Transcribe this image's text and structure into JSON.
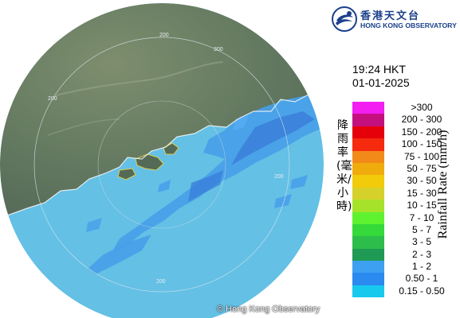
{
  "map": {
    "copyright": "© Hong Kong Observatory",
    "range_ring_labels": [
      "200",
      "300",
      "200",
      "200",
      "200"
    ],
    "colors": {
      "land": "#4f6a4f",
      "sea_outside": "#ffffff",
      "radar_disc_tint": "#9fd8ee"
    }
  },
  "logo": {
    "chinese_name": "香港天文台",
    "english_name": "HONG KONG OBSERVATORY",
    "mark_icon": "hko-logo-icon",
    "color": "#1a3f8c"
  },
  "timestamp": {
    "time": "19:24 HKT",
    "date": "01-01-2025"
  },
  "legend": {
    "title_en": "Rainfall Rate (mm/h)",
    "title_zh": "降雨率(毫米/小時)",
    "items": [
      {
        "label": ">300",
        "color": "#f21ef2"
      },
      {
        "label": "200 - 300",
        "color": "#c4107f"
      },
      {
        "label": "150 - 200",
        "color": "#e6000a"
      },
      {
        "label": "100 - 150",
        "color": "#f52a0e"
      },
      {
        "label": "75 - 100",
        "color": "#f28a1a"
      },
      {
        "label": "50 - 75",
        "color": "#f0ab0c"
      },
      {
        "label": "30 - 50",
        "color": "#f2cb0b"
      },
      {
        "label": "15 - 30",
        "color": "#d6d12a"
      },
      {
        "label": "10 - 15",
        "color": "#a6e22a"
      },
      {
        "label": "7 - 10",
        "color": "#5ef230"
      },
      {
        "label": "5 - 7",
        "color": "#36d93a"
      },
      {
        "label": "3 - 5",
        "color": "#2cbd4a"
      },
      {
        "label": "2 - 3",
        "color": "#1f9a55"
      },
      {
        "label": "1 - 2",
        "color": "#3ea0f0"
      },
      {
        "label": "0.50 - 1",
        "color": "#2b8af0"
      },
      {
        "label": "0.15 - 0.50",
        "color": "#18c9ee"
      }
    ]
  }
}
